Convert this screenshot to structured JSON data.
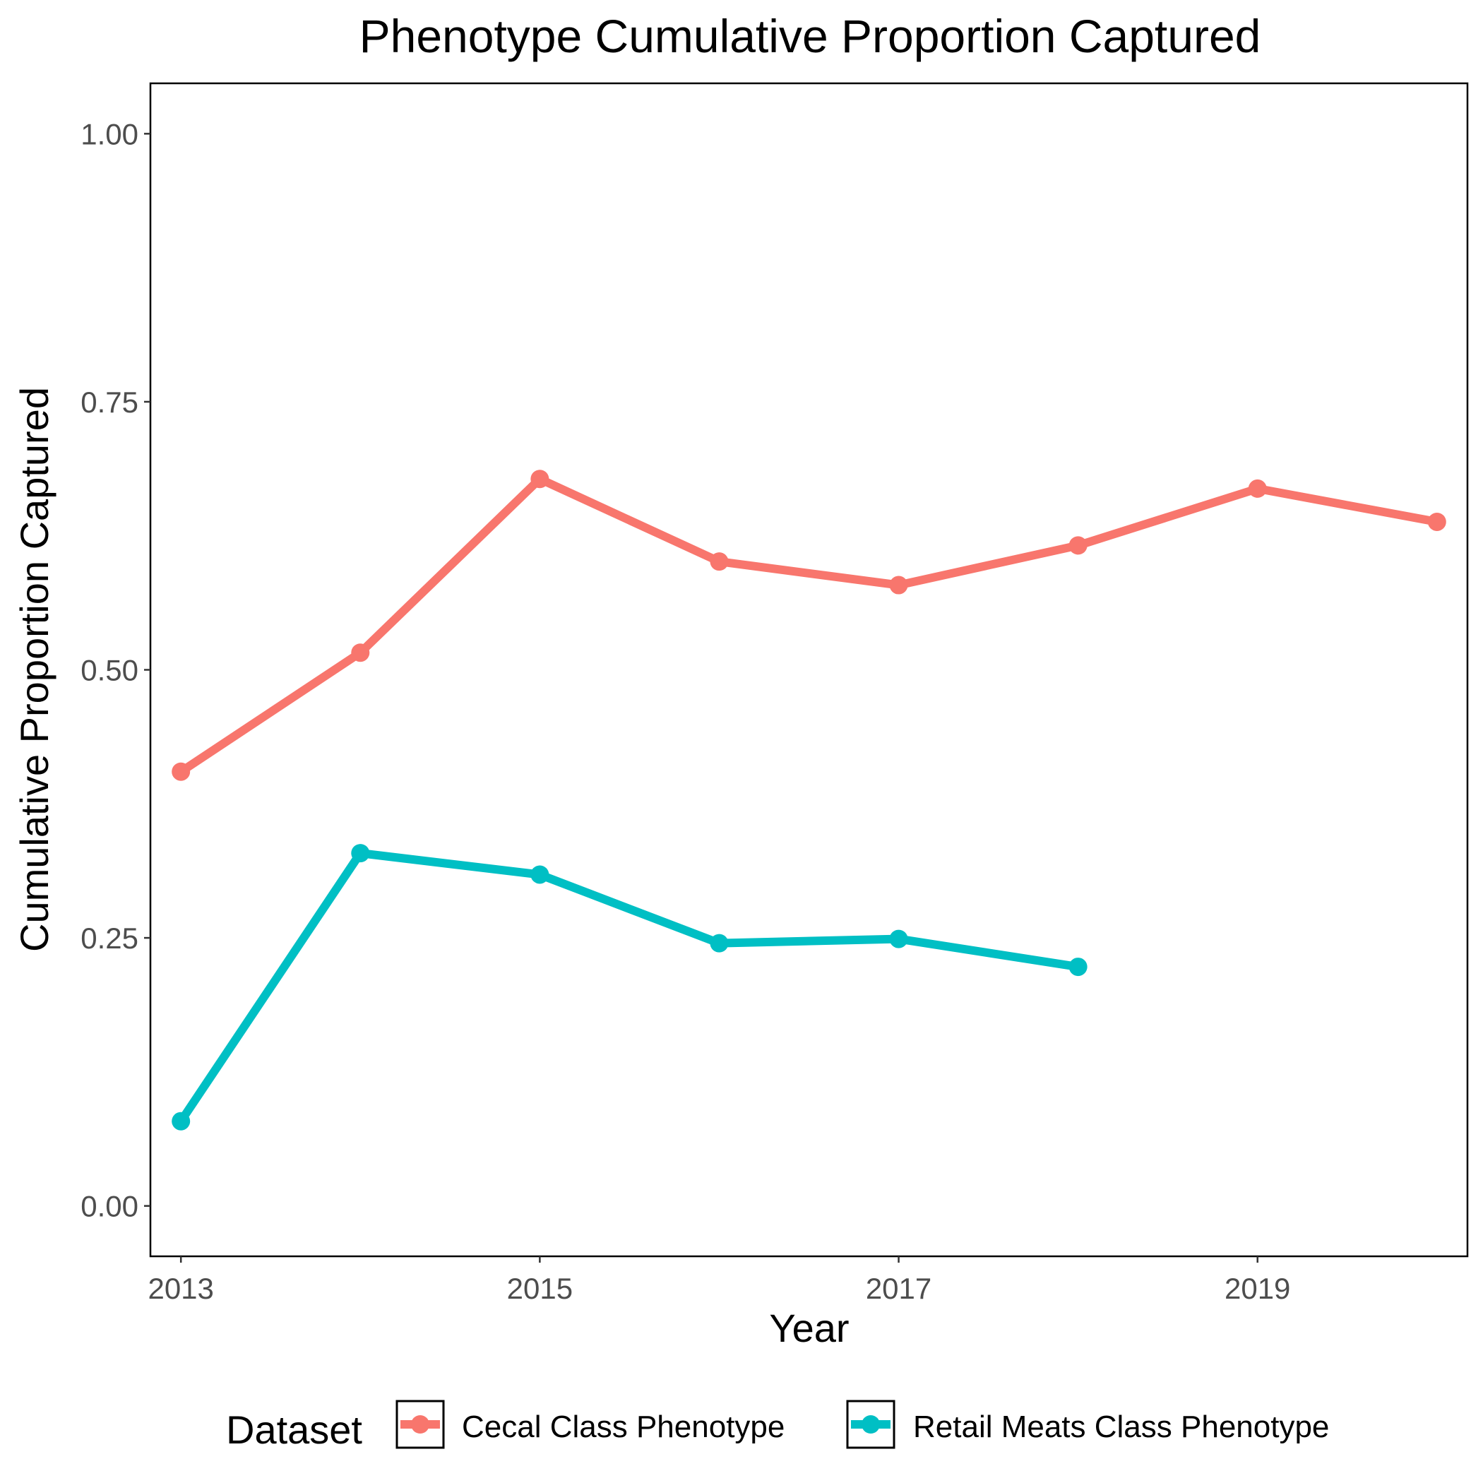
{
  "chart_data": {
    "type": "line",
    "title": "Phenotype Cumulative Proportion Captured",
    "xlabel": "Year",
    "ylabel": "Cumulative Proportion Captured",
    "xlim": [
      2012.83,
      2020.17
    ],
    "ylim": [
      -0.047,
      1.047
    ],
    "x_ticks": [
      2013,
      2015,
      2017,
      2019
    ],
    "x_tick_labels": [
      "2013",
      "2015",
      "2017",
      "2019"
    ],
    "y_ticks": [
      0.0,
      0.25,
      0.5,
      0.75,
      1.0
    ],
    "y_tick_labels": [
      "0.00",
      "0.25",
      "0.50",
      "0.75",
      "1.00"
    ],
    "grid": false,
    "legend": {
      "title": "Dataset",
      "position": "bottom"
    },
    "series": [
      {
        "name": "Cecal Class Phenotype",
        "color": "#F8766D",
        "x": [
          2013,
          2014,
          2015,
          2016,
          2017,
          2018,
          2019,
          2020
        ],
        "y": [
          0.405,
          0.516,
          0.678,
          0.601,
          0.579,
          0.616,
          0.669,
          0.638
        ]
      },
      {
        "name": "Retail Meats Class Phenotype",
        "color": "#00BFC4",
        "x": [
          2013,
          2014,
          2015,
          2016,
          2017,
          2018
        ],
        "y": [
          0.079,
          0.329,
          0.309,
          0.245,
          0.249,
          0.223
        ]
      }
    ]
  }
}
